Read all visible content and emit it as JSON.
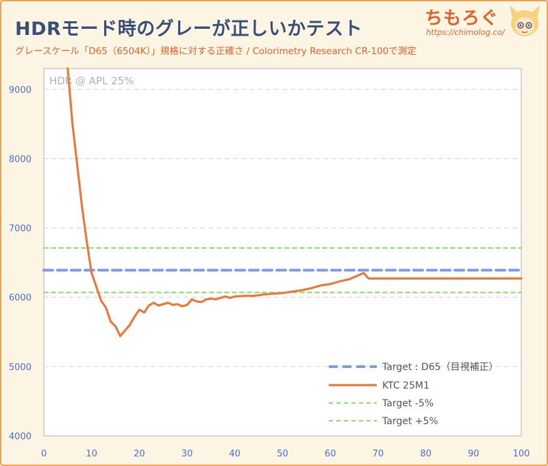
{
  "header": {
    "title": "HDRモード時のグレーが正しいかテスト",
    "subtitle": "グレースケール「D65（6504K）」規格に対する正確さ / Colorimetry Research CR-100で測定"
  },
  "brand": {
    "name": "ちもろぐ",
    "url": "https://chimolog.co/"
  },
  "chart_data": {
    "type": "line",
    "annotation": "HDR @ APL 25%",
    "xlim": [
      0,
      100
    ],
    "ylim": [
      4000,
      9300
    ],
    "xticks": [
      0,
      10,
      20,
      30,
      40,
      50,
      60,
      70,
      80,
      90,
      100
    ],
    "yticks": [
      4000,
      5000,
      6000,
      7000,
      8000,
      9000
    ],
    "grid": true,
    "legend_position": "bottom-right",
    "series": [
      {
        "name": "Target : D65（目視補正）",
        "color": "#7f9be6",
        "style": "dashed-thick",
        "x": [
          0,
          100
        ],
        "y": [
          6390,
          6390
        ]
      },
      {
        "name": "KTC 25M1",
        "color": "#e8793a",
        "style": "solid",
        "x": [
          5,
          6,
          7,
          8,
          9,
          10,
          11,
          12,
          13,
          14,
          15,
          16,
          17,
          18,
          19,
          20,
          21,
          22,
          23,
          24,
          25,
          26,
          27,
          28,
          29,
          30,
          31,
          32,
          33,
          34,
          35,
          36,
          37,
          38,
          39,
          40,
          42,
          44,
          46,
          48,
          50,
          52,
          54,
          56,
          58,
          60,
          62,
          64,
          66,
          67,
          68,
          70,
          75,
          80,
          85,
          90,
          95,
          100
        ],
        "y": [
          9350,
          8500,
          7900,
          7300,
          6800,
          6350,
          6150,
          5950,
          5850,
          5650,
          5580,
          5440,
          5520,
          5600,
          5720,
          5820,
          5780,
          5880,
          5920,
          5880,
          5900,
          5920,
          5890,
          5900,
          5870,
          5890,
          5970,
          5940,
          5930,
          5970,
          5980,
          5970,
          5990,
          6010,
          5990,
          6010,
          6020,
          6020,
          6040,
          6050,
          6060,
          6080,
          6100,
          6130,
          6170,
          6190,
          6230,
          6260,
          6320,
          6350,
          6270,
          6270,
          6270,
          6270,
          6270,
          6270,
          6270,
          6270
        ]
      },
      {
        "name": "Target -5%",
        "color": "#7ed957",
        "style": "dashed-thin",
        "x": [
          0,
          100
        ],
        "y": [
          6070,
          6070
        ]
      },
      {
        "name": "Target +5%",
        "color": "#7ed957",
        "style": "dashed-thin",
        "x": [
          0,
          100
        ],
        "y": [
          6710,
          6710
        ]
      }
    ]
  }
}
